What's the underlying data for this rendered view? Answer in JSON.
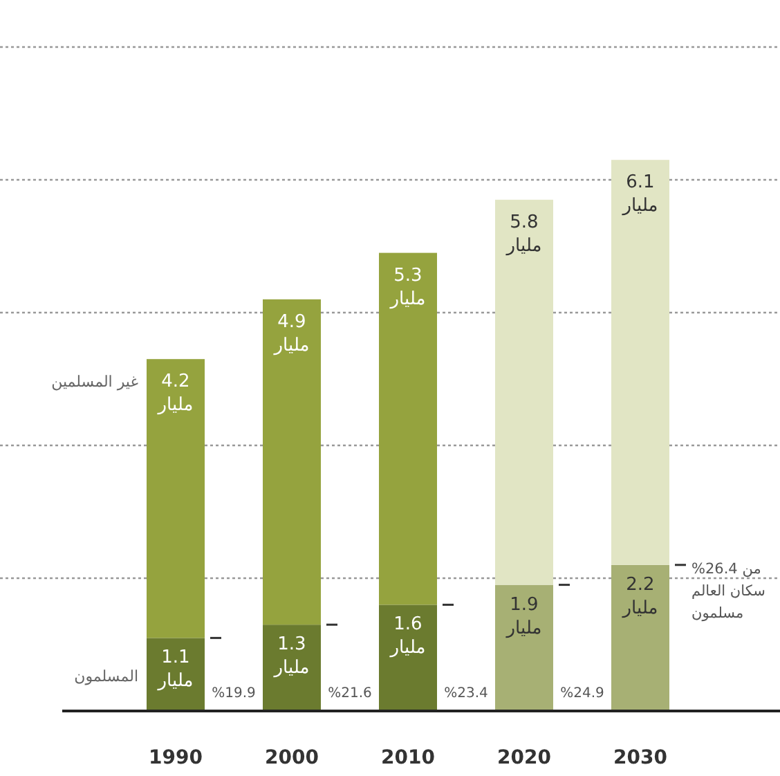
{
  "chart_data": {
    "type": "bar",
    "stacked": true,
    "categories": [
      "1990",
      "2000",
      "2010",
      "2020",
      "2030"
    ],
    "series": [
      {
        "name": "المسلمون",
        "values": [
          1.1,
          1.3,
          1.6,
          1.9,
          2.2
        ],
        "colors": [
          "#6b7b2f",
          "#6b7b2f",
          "#6b7b2f",
          "#a7b074",
          "#a7b074"
        ],
        "value_labels": [
          "1.1 مليار",
          "1.3 مليار",
          "1.6 مليار",
          "1.9 مليار",
          "2.2 مليار"
        ]
      },
      {
        "name": "غير المسلمين",
        "values": [
          4.2,
          4.9,
          5.3,
          5.8,
          6.1
        ],
        "colors": [
          "#95a33e",
          "#95a33e",
          "#95a33e",
          "#e1e5c4",
          "#e1e5c4"
        ],
        "value_labels": [
          "4.2 مليار",
          "4.9 مليار",
          "5.3 مليار",
          "5.8 مليار",
          "6.1 مليار"
        ]
      }
    ],
    "ylim": [
      0,
      10
    ],
    "yticks": [
      {
        "value": 2,
        "label": null
      },
      {
        "value": 4,
        "label": null
      },
      {
        "value": 6,
        "label": null
      },
      {
        "value": 8,
        "label": null
      },
      {
        "value": 10,
        "label": null
      }
    ],
    "grid": "y",
    "tick_labels": "x",
    "annotations": [
      "%19.9",
      "%21.6",
      "%23.4",
      "%24.9",
      "%26.4 من سكان العالم مسلمون"
    ]
  }
}
